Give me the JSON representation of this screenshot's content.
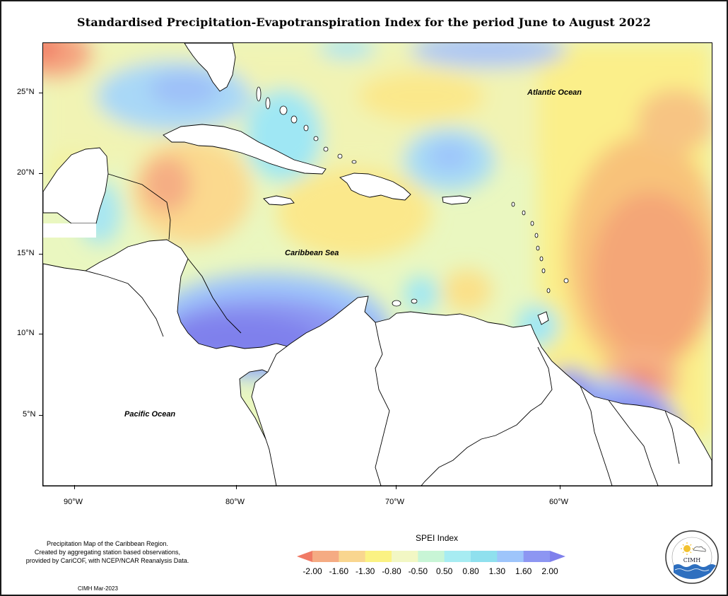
{
  "title": "Standardised Precipitation-Evapotranspiration Index for the period June to August 2022",
  "map": {
    "labels": {
      "atlantic": "Atlantic Ocean",
      "caribbean": "Caribbean Sea",
      "pacific": "Pacific Ocean"
    },
    "lat_ticks": [
      "25°N",
      "20°N",
      "15°N",
      "10°N",
      "5°N"
    ],
    "lon_ticks": [
      "90°W",
      "80°W",
      "70°W",
      "60°W"
    ],
    "zones": [
      {
        "region": "Northwest corner (Gulf of Mexico)",
        "class": -1.6
      },
      {
        "region": "West of Cuba",
        "class": -1.3
      },
      {
        "region": "Hispaniola and central Caribbean",
        "class": -0.8
      },
      {
        "region": "Bahamas and east of Bahamas",
        "class": 1.3
      },
      {
        "region": "Eastern Atlantic",
        "class": -1.3
      },
      {
        "region": "Southwest Caribbean (Panama, Colombia coast)",
        "class": 1.6
      },
      {
        "region": "Guianas",
        "class": 1.6
      },
      {
        "region": "Atlantic off the Guianas",
        "class": -1.6
      }
    ]
  },
  "footnote": {
    "line1": "Precipitation Map of the Caribbean Region.",
    "line2": "Created by aggregating station based observations,",
    "line3": "provided by CariCOF, with NCEP/NCAR Reanalysis Data."
  },
  "date_note": "CIMH Mar-2023",
  "legend": {
    "title": "SPEI Index",
    "values": [
      "-2.00",
      "-1.60",
      "-1.30",
      "-0.80",
      "-0.50",
      "0.50",
      "0.80",
      "1.30",
      "1.60",
      "2.00"
    ],
    "colors": [
      "#f07a65",
      "#f5ab83",
      "#f9d68f",
      "#fbf283",
      "#f2f7c4",
      "#c8f5d6",
      "#a7ecf2",
      "#8fe0ee",
      "#9ec5fb",
      "#8d96f2",
      "#7f80ec"
    ]
  },
  "logo": {
    "org": "CIMH"
  }
}
